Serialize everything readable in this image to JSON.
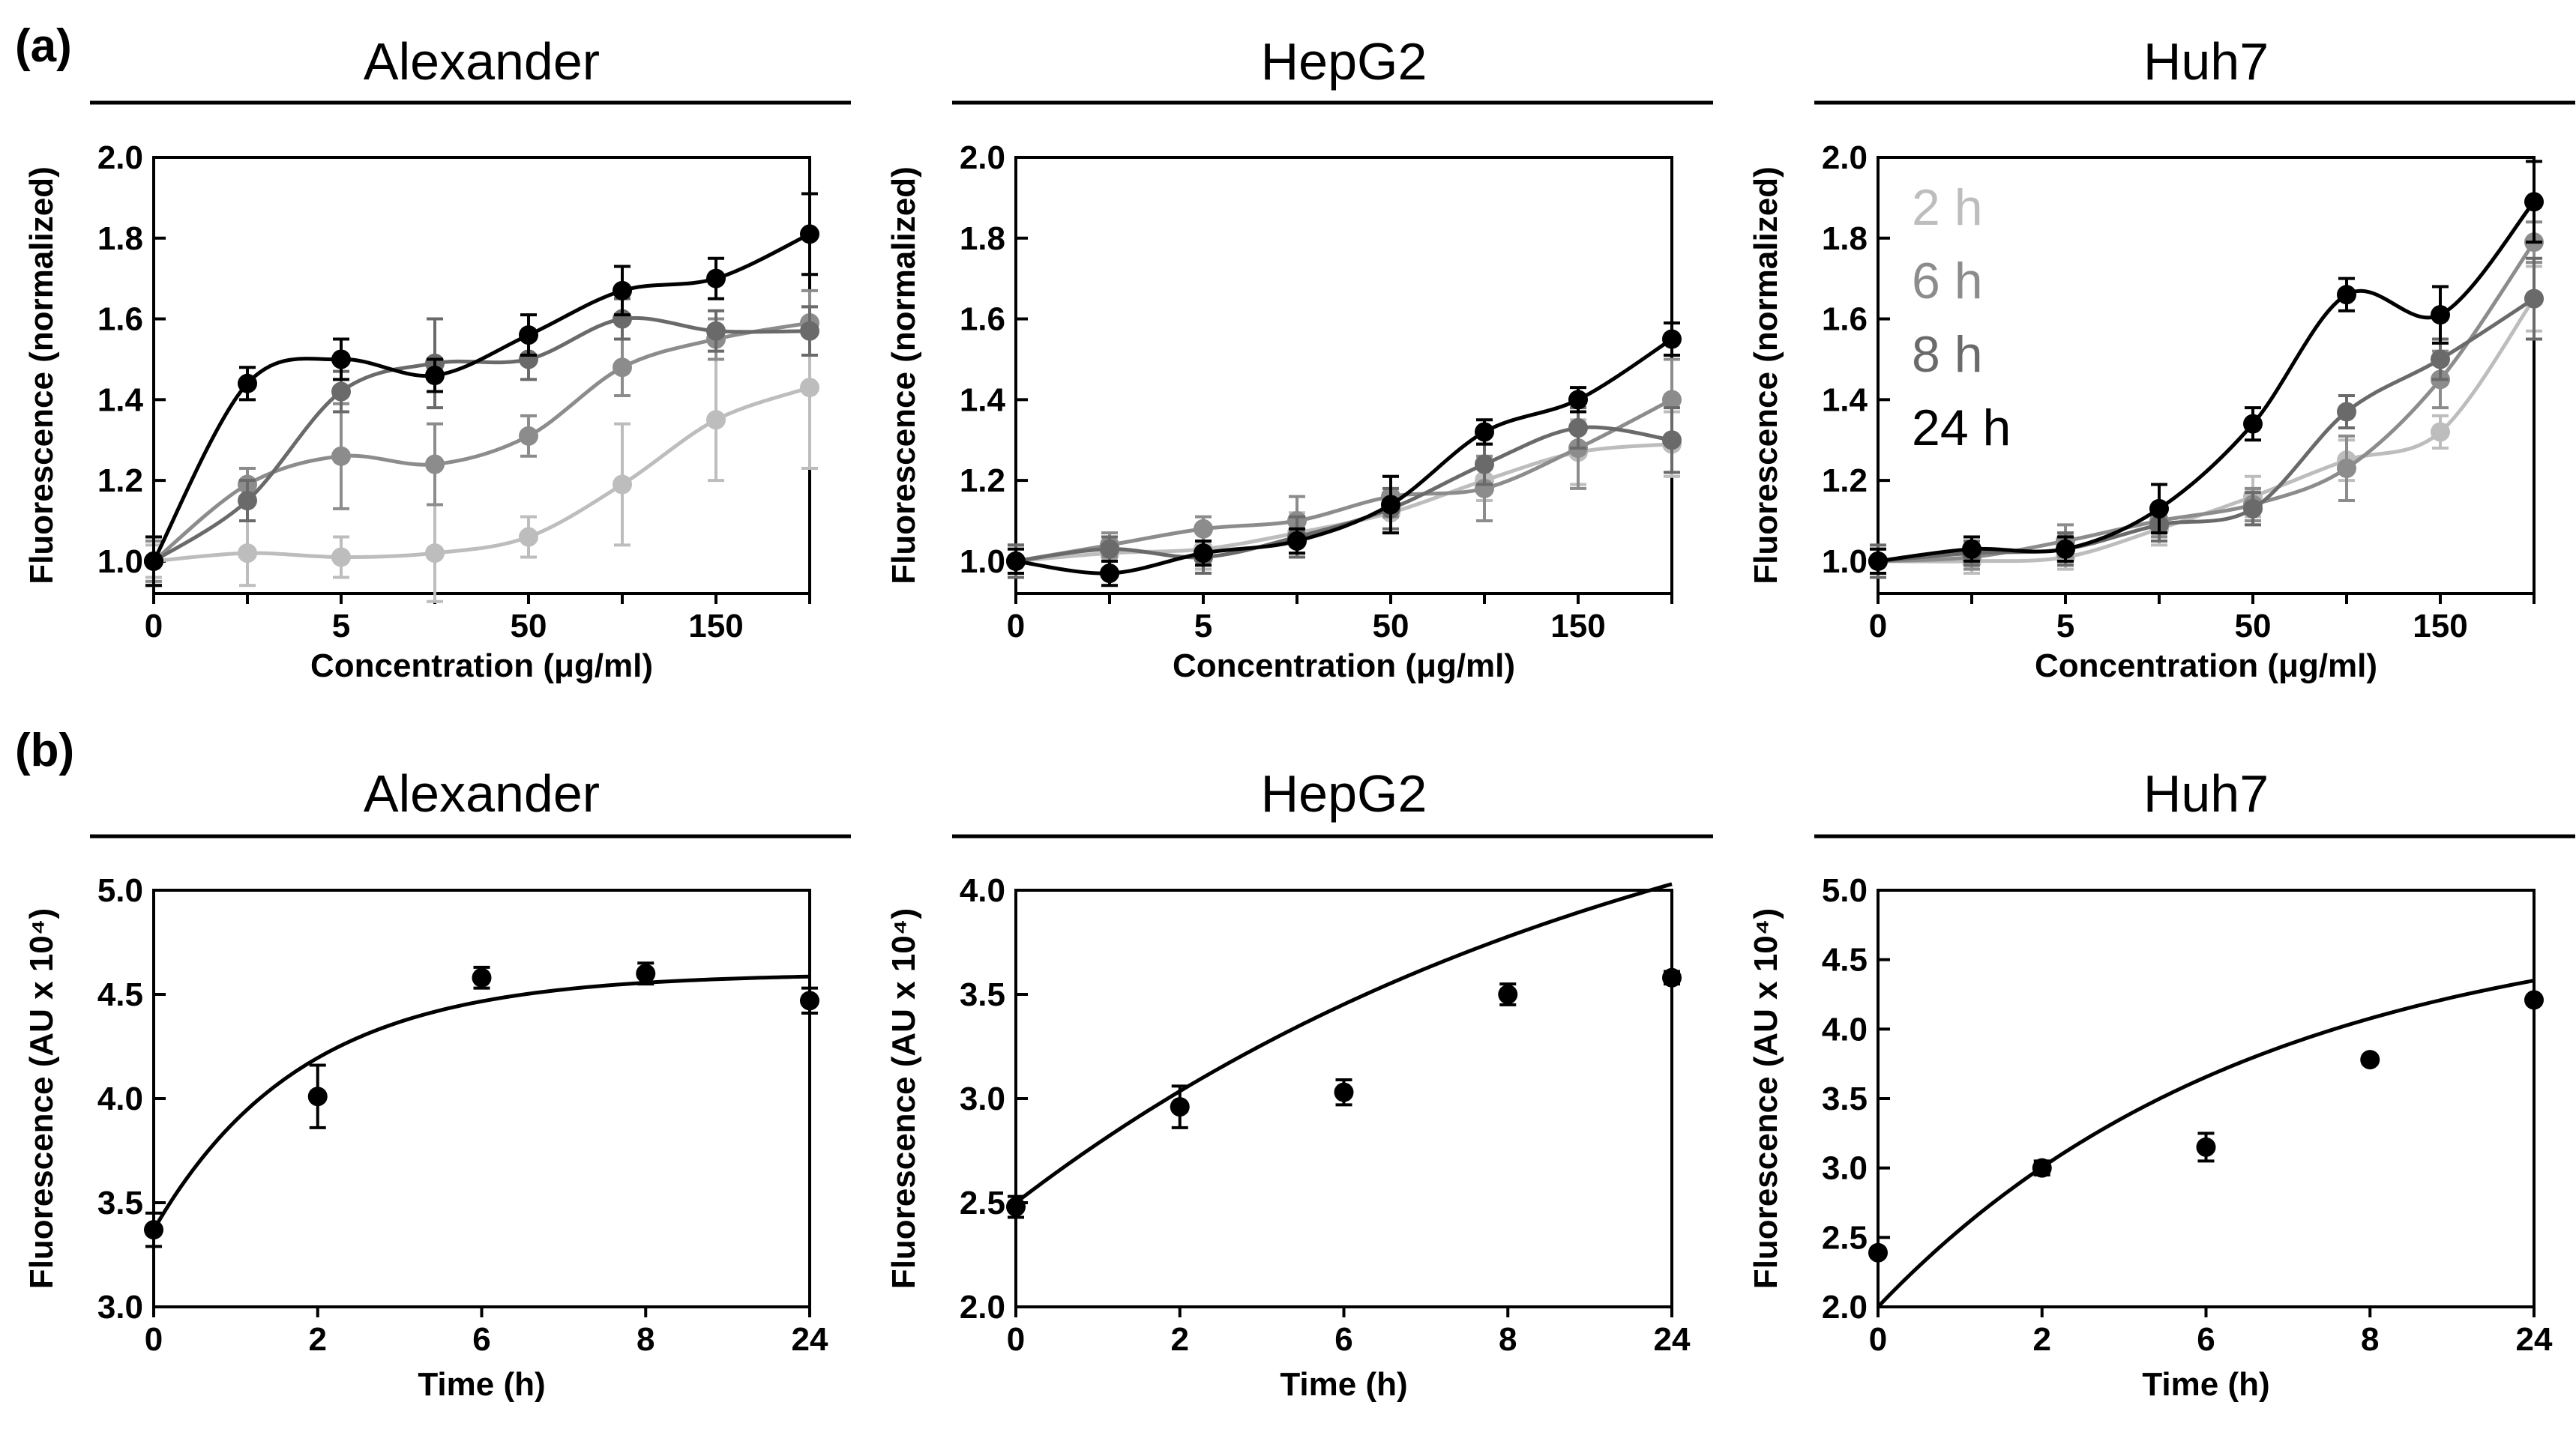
{
  "figure": {
    "panel_a_label": "(a)",
    "panel_b_label": "(b)"
  },
  "chart_data": [
    {
      "id": "a1",
      "type": "line",
      "group": "a",
      "title": "Alexander",
      "xlabel": "Concentration (μg/ml)",
      "ylabel": "Fluorescence (normalized)",
      "categories": [
        "0",
        "",
        "5",
        "",
        "50",
        "",
        "150",
        ""
      ],
      "yticks": [
        "1.0",
        "1.2",
        "1.4",
        "1.6",
        "1.8",
        "2.0"
      ],
      "ylim": [
        0.92,
        2.0
      ],
      "grid": false,
      "series": [
        {
          "name": "2 h",
          "color": "#bdbdbd",
          "values": [
            1.0,
            1.02,
            1.01,
            1.02,
            1.06,
            1.19,
            1.35,
            1.43
          ],
          "errors": [
            0.04,
            0.08,
            0.05,
            0.12,
            0.05,
            0.15,
            0.15,
            0.2
          ]
        },
        {
          "name": "6 h",
          "color": "#8c8c8c",
          "values": [
            1.0,
            1.19,
            1.26,
            1.24,
            1.31,
            1.48,
            1.55,
            1.59
          ],
          "errors": [
            0.05,
            0.04,
            0.13,
            0.1,
            0.05,
            0.07,
            0.05,
            0.08
          ]
        },
        {
          "name": "8 h",
          "color": "#6a6a6a",
          "values": [
            1.0,
            1.15,
            1.42,
            1.49,
            1.5,
            1.6,
            1.57,
            1.57
          ],
          "errors": [
            0.06,
            0.05,
            0.05,
            0.11,
            0.05,
            0.05,
            0.05,
            0.06
          ]
        },
        {
          "name": "24 h",
          "color": "#000000",
          "values": [
            1.0,
            1.44,
            1.5,
            1.46,
            1.56,
            1.67,
            1.7,
            1.81
          ],
          "errors": [
            0.06,
            0.04,
            0.05,
            0.04,
            0.05,
            0.06,
            0.05,
            0.1
          ]
        }
      ]
    },
    {
      "id": "a2",
      "type": "line",
      "group": "a",
      "title": "HepG2",
      "xlabel": "Concentration (μg/ml)",
      "ylabel": "Fluorescence (normalized)",
      "categories": [
        "0",
        "",
        "5",
        "",
        "50",
        "",
        "150",
        ""
      ],
      "yticks": [
        "1.0",
        "1.2",
        "1.4",
        "1.6",
        "1.8",
        "2.0"
      ],
      "ylim": [
        0.92,
        2.0
      ],
      "grid": false,
      "series": [
        {
          "name": "2 h",
          "color": "#bdbdbd",
          "values": [
            1.0,
            1.02,
            1.03,
            1.07,
            1.12,
            1.2,
            1.27,
            1.29
          ],
          "errors": [
            0.04,
            0.04,
            0.05,
            0.05,
            0.05,
            0.05,
            0.08,
            0.08
          ]
        },
        {
          "name": "6 h",
          "color": "#8c8c8c",
          "values": [
            1.0,
            1.04,
            1.08,
            1.1,
            1.16,
            1.18,
            1.28,
            1.4
          ],
          "errors": [
            0.04,
            0.03,
            0.03,
            0.06,
            0.05,
            0.08,
            0.1,
            0.1
          ]
        },
        {
          "name": "8 h",
          "color": "#6a6a6a",
          "values": [
            1.0,
            1.03,
            1.01,
            1.06,
            1.13,
            1.24,
            1.33,
            1.3
          ],
          "errors": [
            0.04,
            0.03,
            0.04,
            0.05,
            0.05,
            0.05,
            0.05,
            0.08
          ]
        },
        {
          "name": "24 h",
          "color": "#000000",
          "values": [
            1.0,
            0.97,
            1.02,
            1.05,
            1.14,
            1.32,
            1.4,
            1.55
          ],
          "errors": [
            0.03,
            0.03,
            0.03,
            0.03,
            0.07,
            0.03,
            0.03,
            0.04
          ]
        }
      ]
    },
    {
      "id": "a3",
      "type": "line",
      "group": "a",
      "title": "Huh7",
      "xlabel": "Concentration (μg/ml)",
      "ylabel": "Fluorescence (normalized)",
      "categories": [
        "0",
        "",
        "5",
        "",
        "50",
        "",
        "150",
        ""
      ],
      "yticks": [
        "1.0",
        "1.2",
        "1.4",
        "1.6",
        "1.8",
        "2.0"
      ],
      "ylim": [
        0.92,
        2.0
      ],
      "grid": false,
      "legend": "top-left",
      "series": [
        {
          "name": "2 h",
          "color": "#bdbdbd",
          "values": [
            1.0,
            1.0,
            1.01,
            1.08,
            1.16,
            1.25,
            1.32,
            1.65
          ],
          "errors": [
            0.03,
            0.03,
            0.03,
            0.04,
            0.05,
            0.05,
            0.04,
            0.08
          ]
        },
        {
          "name": "6 h",
          "color": "#8c8c8c",
          "values": [
            1.0,
            1.01,
            1.05,
            1.1,
            1.14,
            1.23,
            1.45,
            1.79
          ],
          "errors": [
            0.03,
            0.03,
            0.04,
            0.04,
            0.04,
            0.08,
            0.07,
            0.05
          ]
        },
        {
          "name": "8 h",
          "color": "#6a6a6a",
          "values": [
            1.0,
            1.02,
            1.03,
            1.09,
            1.13,
            1.37,
            1.5,
            1.65
          ],
          "errors": [
            0.04,
            0.03,
            0.04,
            0.04,
            0.04,
            0.04,
            0.05,
            0.1
          ]
        },
        {
          "name": "24 h",
          "color": "#000000",
          "values": [
            1.0,
            1.03,
            1.03,
            1.13,
            1.34,
            1.66,
            1.61,
            1.89
          ],
          "errors": [
            0.03,
            0.03,
            0.03,
            0.06,
            0.04,
            0.04,
            0.07,
            0.1
          ]
        }
      ]
    },
    {
      "id": "b1",
      "type": "scatter",
      "group": "b",
      "title": "Alexander",
      "xlabel": "Time (h)",
      "ylabel": "Fluorescence (AU x 10⁴)",
      "categories": [
        "0",
        "2",
        "6",
        "8",
        "24"
      ],
      "yticks": [
        "3.0",
        "3.5",
        "4.0",
        "4.5",
        "5.0"
      ],
      "ylim": [
        3.0,
        5.0
      ],
      "grid": false,
      "points": [
        {
          "y": 3.37,
          "err": 0.08
        },
        {
          "y": 4.01,
          "err": 0.15
        },
        {
          "y": 4.58,
          "err": 0.05
        },
        {
          "y": 4.6,
          "err": 0.05
        },
        {
          "y": 4.47,
          "err": 0.06
        }
      ],
      "fit": {
        "type": "exponential-rise",
        "y0": 3.37,
        "ymax": 4.6,
        "tau": 0.9
      }
    },
    {
      "id": "b2",
      "type": "scatter",
      "group": "b",
      "title": "HepG2",
      "xlabel": "Time (h)",
      "ylabel": "Fluorescence (AU x 10⁴)",
      "categories": [
        "0",
        "2",
        "6",
        "8",
        "24"
      ],
      "yticks": [
        "2.0",
        "2.5",
        "3.0",
        "3.5",
        "4.0"
      ],
      "ylim": [
        2.0,
        4.0
      ],
      "grid": false,
      "points": [
        {
          "y": 2.48,
          "err": 0.05
        },
        {
          "y": 2.96,
          "err": 0.1
        },
        {
          "y": 3.03,
          "err": 0.06
        },
        {
          "y": 3.5,
          "err": 0.05
        },
        {
          "y": 3.58,
          "err": 0.03
        }
      ],
      "fit": {
        "type": "exponential-rise",
        "y0": 2.5,
        "ymax": 4.92,
        "tau": 4.0
      }
    },
    {
      "id": "b3",
      "type": "scatter",
      "group": "b",
      "title": "Huh7",
      "xlabel": "Time (h)",
      "ylabel": "Fluorescence (AU x 10⁴)",
      "categories": [
        "0",
        "2",
        "6",
        "8",
        "24"
      ],
      "yticks": [
        "2.0",
        "2.5",
        "3.0",
        "3.5",
        "4.0",
        "4.5",
        "5.0"
      ],
      "ylim": [
        2.0,
        5.0
      ],
      "grid": false,
      "points": [
        {
          "y": 2.39,
          "err": 0.03
        },
        {
          "y": 3.0,
          "err": 0.05
        },
        {
          "y": 3.15,
          "err": 0.1
        },
        {
          "y": 3.78,
          "err": 0.03
        },
        {
          "y": 4.21,
          "err": 0.03
        }
      ],
      "fit": {
        "type": "exponential-rise",
        "y0": 2.0,
        "ymax": 4.85,
        "tau": 2.3
      }
    }
  ]
}
